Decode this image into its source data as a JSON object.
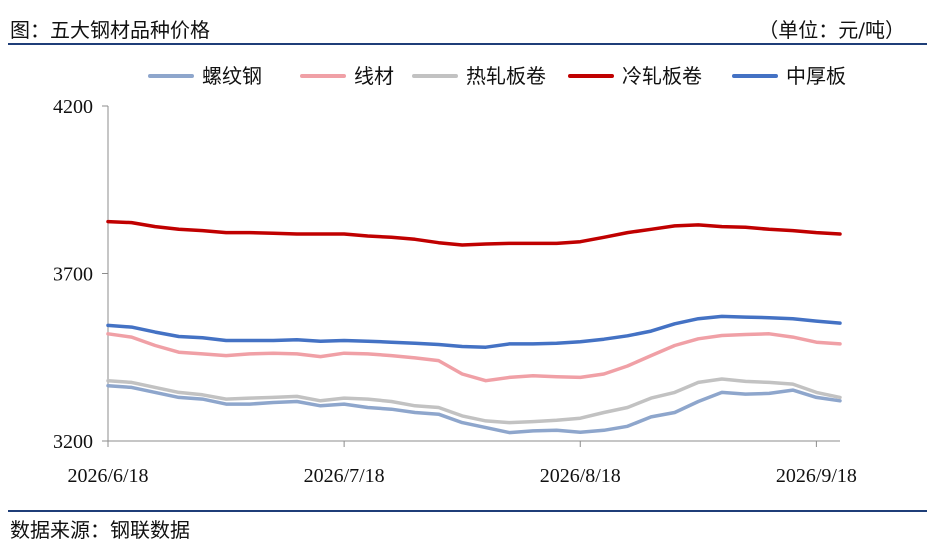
{
  "header": {
    "title": "图：五大钢材品种价格",
    "unit": "（单位：元/吨）"
  },
  "footer": {
    "source": "数据来源：钢联数据"
  },
  "chart_data": {
    "type": "line",
    "title": "",
    "xlabel": "",
    "ylabel": "",
    "ylim": [
      3200,
      4200
    ],
    "yticks": [
      "3200",
      "3700",
      "4200"
    ],
    "xticks": [
      "2026/6/18",
      "2026/7/18",
      "2026/8/18",
      "2026/9/18"
    ],
    "x": [
      "2026/6/18",
      "2026/6/21",
      "2026/6/24",
      "2026/6/27",
      "2026/6/30",
      "2026/7/3",
      "2026/7/6",
      "2026/7/9",
      "2026/7/12",
      "2026/7/15",
      "2026/7/18",
      "2026/7/21",
      "2026/7/24",
      "2026/7/27",
      "2026/7/30",
      "2026/8/2",
      "2026/8/5",
      "2026/8/8",
      "2026/8/11",
      "2026/8/14",
      "2026/8/17",
      "2026/8/20",
      "2026/8/23",
      "2026/8/26",
      "2026/8/29",
      "2026/9/1",
      "2026/9/4",
      "2026/9/7",
      "2026/9/10",
      "2026/9/13",
      "2026/9/16",
      "2026/9/19"
    ],
    "grid": false,
    "legend_position": "top",
    "series": [
      {
        "name": "螺纹钢",
        "color": "#8ea6cc",
        "values": [
          3365,
          3360,
          3345,
          3330,
          3325,
          3310,
          3310,
          3315,
          3318,
          3305,
          3310,
          3300,
          3295,
          3285,
          3280,
          3255,
          3240,
          3225,
          3230,
          3232,
          3226,
          3232,
          3244,
          3272,
          3285,
          3318,
          3345,
          3340,
          3342,
          3352,
          3330,
          3320
        ]
      },
      {
        "name": "线材",
        "color": "#f0a0a6",
        "values": [
          3520,
          3510,
          3485,
          3465,
          3460,
          3455,
          3460,
          3462,
          3460,
          3452,
          3462,
          3460,
          3455,
          3448,
          3440,
          3400,
          3380,
          3390,
          3395,
          3392,
          3390,
          3400,
          3424,
          3455,
          3485,
          3505,
          3515,
          3518,
          3520,
          3510,
          3495,
          3490
        ]
      },
      {
        "name": "热轧板卷",
        "color": "#c2c2c2",
        "values": [
          3380,
          3375,
          3360,
          3345,
          3338,
          3325,
          3328,
          3330,
          3333,
          3320,
          3328,
          3325,
          3318,
          3305,
          3300,
          3275,
          3260,
          3255,
          3258,
          3262,
          3268,
          3285,
          3300,
          3328,
          3345,
          3375,
          3385,
          3378,
          3375,
          3370,
          3345,
          3330
        ]
      },
      {
        "name": "冷轧板卷",
        "color": "#c00000",
        "values": [
          3855,
          3852,
          3840,
          3832,
          3828,
          3822,
          3822,
          3820,
          3818,
          3818,
          3818,
          3812,
          3808,
          3802,
          3792,
          3785,
          3788,
          3790,
          3790,
          3790,
          3795,
          3808,
          3822,
          3832,
          3842,
          3845,
          3840,
          3838,
          3832,
          3828,
          3822,
          3818
        ]
      },
      {
        "name": "中厚板",
        "color": "#4472c4",
        "values": [
          3545,
          3540,
          3525,
          3512,
          3508,
          3500,
          3500,
          3500,
          3502,
          3498,
          3500,
          3498,
          3495,
          3492,
          3488,
          3482,
          3480,
          3490,
          3490,
          3492,
          3496,
          3504,
          3514,
          3528,
          3550,
          3565,
          3572,
          3570,
          3568,
          3565,
          3558,
          3552
        ]
      }
    ]
  }
}
